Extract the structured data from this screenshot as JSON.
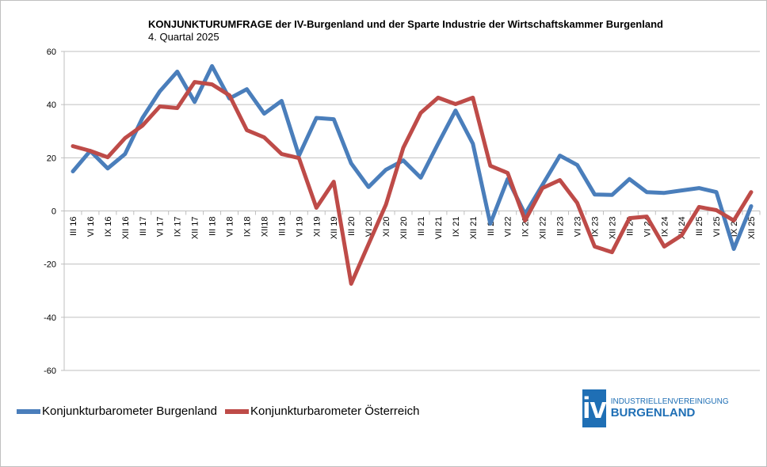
{
  "chart_data": {
    "type": "line",
    "title": "KONJUNKTURUMFRAGE der IV-Burgenland und der Sparte Industrie der Wirtschaftskammer Burgenland",
    "subtitle": "4. Quartal 2025",
    "xlabel": "",
    "ylabel": "",
    "ylim": [
      -60,
      60
    ],
    "yticks": [
      60,
      40,
      20,
      0,
      -20,
      -40,
      -60
    ],
    "grid": true,
    "legend_position": "bottom-left",
    "categories": [
      "III 16",
      "VI 16",
      "IX 16",
      "XII 16",
      "III 17",
      "VI 17",
      "IX 17",
      "XII 17",
      "III 18",
      "VI 18",
      "IX 18",
      "XII18",
      "III 19",
      "VI 19",
      "XI 19",
      "XII 19",
      "III 20",
      "VI 20",
      "XI 20",
      "XII 20",
      "III 21",
      "VII 21",
      "IX 21",
      "XII 21",
      "III 22",
      "VI 22",
      "IX 22",
      "XII 22",
      "III 23",
      "VI 23",
      "IX 23",
      "XII 23",
      "III 24",
      "VI 24",
      "IX 24",
      "XII 24",
      "III 25",
      "VI 25",
      "IX 25",
      "XII 25"
    ],
    "series": [
      {
        "name": "Konjunkturbarometer Burgenland",
        "color": "#4a7ebb",
        "values": [
          14.9,
          22.6,
          16,
          21.4,
          35,
          45,
          52.4,
          41,
          54.5,
          42.3,
          45.8,
          36.6,
          41.4,
          20.8,
          35,
          34.5,
          17.9,
          9,
          15.5,
          19,
          12.5,
          25.3,
          37.8,
          25.3,
          -4.8,
          12,
          -1.2,
          9.8,
          20.8,
          17.3,
          6.2,
          6,
          12,
          7.1,
          6.8,
          7.7,
          8.6,
          7.1,
          -14.3,
          1.8
        ]
      },
      {
        "name": "Konjunkturbarometer Österreich",
        "color": "#be4b48",
        "values": [
          24.4,
          22.6,
          20.2,
          27.4,
          32.1,
          39.3,
          38.7,
          48.5,
          47.6,
          43.5,
          30.4,
          27.7,
          21.4,
          19.9,
          1.2,
          11,
          -27.4,
          -12.5,
          2.4,
          23.8,
          36.9,
          42.6,
          40.2,
          42.6,
          17,
          14.3,
          -3.6,
          8.6,
          11.6,
          3,
          -13.4,
          -15.5,
          -2.7,
          -2.1,
          -13.4,
          -9.2,
          1.5,
          0.3,
          -3.6,
          7.1
        ]
      }
    ]
  },
  "logo": {
    "mark": "iv",
    "line1": "INDUSTRIELLENVEREINIGUNG",
    "line2": "BURGENLAND",
    "color": "#1f6fb5"
  }
}
